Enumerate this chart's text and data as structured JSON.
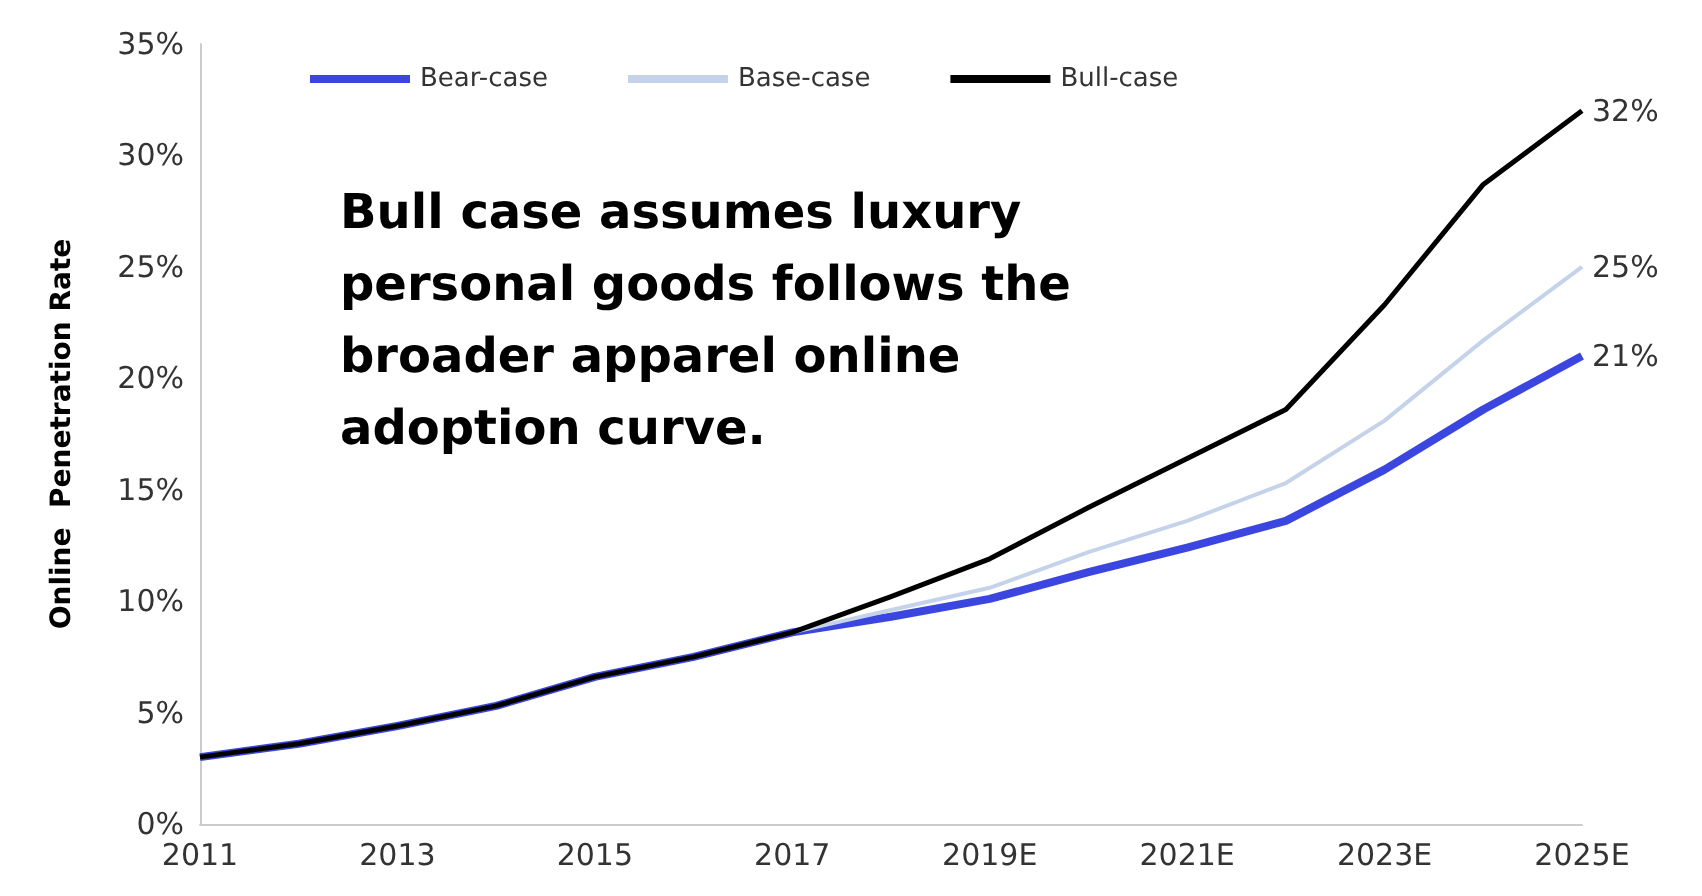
{
  "chart_data": {
    "type": "line",
    "ylabel": "Online  Penetration Rate",
    "annotations": [
      "Bull case assumes luxury personal goods follows the broader apparel online adoption curve."
    ],
    "categories": [
      "2011",
      null,
      "2013",
      null,
      "2015",
      null,
      "2017",
      null,
      "2019E",
      null,
      "2021E",
      null,
      "2023E",
      null,
      "2025E"
    ],
    "series": [
      {
        "name": "Bear-case",
        "color": "#3b45e0",
        "values": [
          3.0,
          3.6,
          4.4,
          5.3,
          6.6,
          7.5,
          8.6,
          9.3,
          10.1,
          11.3,
          12.4,
          13.6,
          15.9,
          18.6,
          21
        ],
        "value_labels": [
          null,
          null,
          null,
          null,
          null,
          null,
          null,
          null,
          null,
          null,
          null,
          null,
          null,
          null,
          "21%"
        ]
      },
      {
        "name": "Base-case",
        "color": "#c5d3ea",
        "values": [
          3.0,
          3.6,
          4.4,
          5.3,
          6.6,
          7.5,
          8.6,
          9.6,
          10.6,
          12.2,
          13.6,
          15.3,
          18.1,
          21.7,
          25
        ],
        "value_labels": [
          null,
          null,
          null,
          null,
          null,
          null,
          null,
          null,
          null,
          null,
          null,
          null,
          null,
          null,
          "25%"
        ]
      },
      {
        "name": "Bull-case",
        "color": "#000000",
        "values": [
          3.0,
          3.6,
          4.4,
          5.3,
          6.6,
          7.5,
          8.6,
          10.2,
          11.9,
          14.2,
          16.4,
          18.6,
          23.3,
          28.7,
          32
        ],
        "value_labels": [
          null,
          null,
          null,
          null,
          null,
          null,
          null,
          null,
          null,
          null,
          null,
          null,
          null,
          null,
          "32%"
        ]
      }
    ],
    "ylim": [
      0,
      35
    ],
    "yticks": [
      {
        "value": 0,
        "label": "0%"
      },
      {
        "value": 5,
        "label": "5%"
      },
      {
        "value": 10,
        "label": "10%"
      },
      {
        "value": 15,
        "label": "15%"
      },
      {
        "value": 20,
        "label": "20%"
      },
      {
        "value": 25,
        "label": "25%"
      },
      {
        "value": 30,
        "label": "30%"
      },
      {
        "value": 35,
        "label": "35%"
      }
    ],
    "grid": false,
    "legend": "top left",
    "marker": "none",
    "line_style": "solid"
  }
}
